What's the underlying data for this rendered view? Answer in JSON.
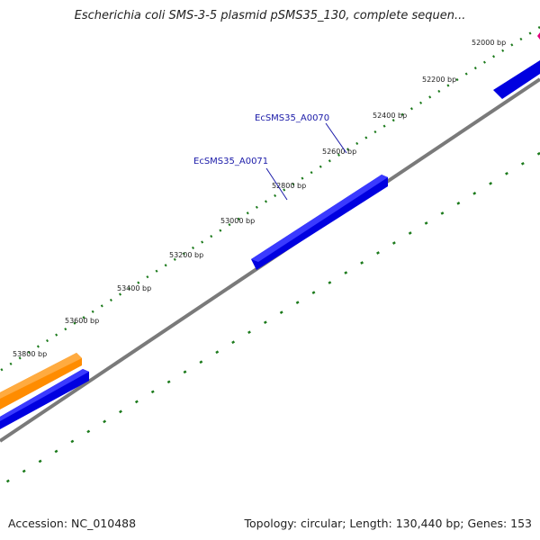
{
  "title": "Escherichia coli SMS-3-5 plasmid pSMS35_130, complete sequen...",
  "footer": {
    "accession": "Accession: NC_010488",
    "summary": "Topology: circular; Length: 130,440 bp; Genes: 153"
  },
  "ticks": [
    "52000 bp",
    "52200 bp",
    "52400 bp",
    "52600 bp",
    "52800 bp",
    "53000 bp",
    "53200 bp",
    "53400 bp",
    "53600 bp",
    "53800 bp"
  ],
  "genes": [
    "EcSMS35_A0070",
    "EcSMS35_A0071"
  ],
  "colors": {
    "backbone": "#7a7a7a",
    "forward_gene": "#0000e0",
    "orange_gene": "#ff8c00",
    "tick_marks": "#1b7a1b",
    "gene_label": "#1a1aa8",
    "marker": "#e0007a"
  }
}
